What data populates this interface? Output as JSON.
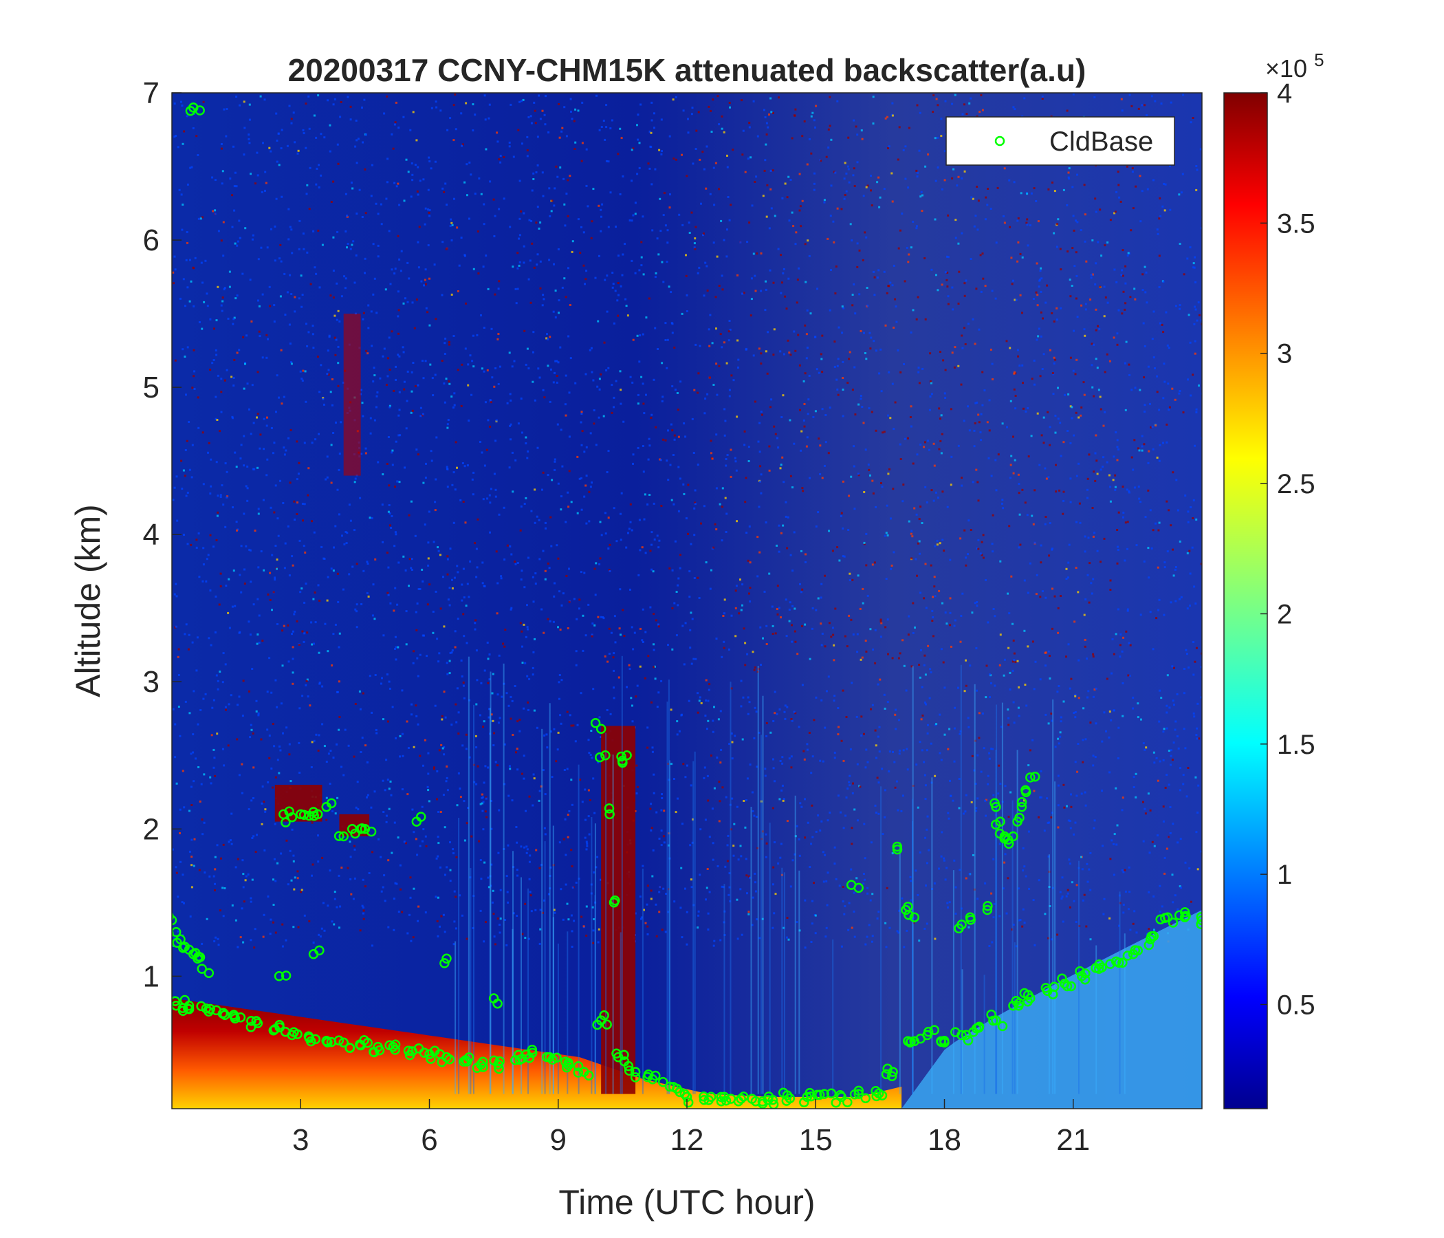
{
  "chart_data": {
    "type": "heatmap",
    "title": "20200317 CCNY-CHM15K attenuated backscatter(a.u)",
    "xlabel": "Time (UTC hour)",
    "ylabel": "Altitude (km)",
    "xlim": [
      0,
      24
    ],
    "ylim": [
      0.1,
      7
    ],
    "x_ticks": [
      3,
      6,
      9,
      12,
      15,
      18,
      21
    ],
    "y_ticks": [
      1,
      2,
      3,
      4,
      5,
      6,
      7
    ],
    "colorbar": {
      "colormap": "jet",
      "range": [
        0.1,
        4
      ],
      "ticks": [
        0.5,
        1,
        1.5,
        2,
        2.5,
        3,
        3.5,
        4
      ],
      "exponent_label": "×10",
      "exponent_power": "5"
    },
    "legend": {
      "position": "top-right",
      "entries": [
        "CldBase"
      ]
    },
    "series": [
      {
        "name": "CldBase",
        "marker": "circle",
        "color": "#00ff00",
        "segments": [
          {
            "x": [
              0.1,
              0.4,
              0.8,
              1.2,
              1.6,
              2.0,
              2.4,
              2.8,
              3.2,
              3.6,
              4.0,
              4.4,
              4.8,
              5.2,
              5.6,
              6.0,
              6.4,
              6.8,
              7.2,
              7.6,
              8.0,
              8.4,
              8.8,
              9.2,
              9.6,
              10.0,
              10.4,
              10.8,
              11.2,
              11.6,
              12.0,
              12.4,
              12.8,
              13.2,
              13.6,
              14.0,
              14.4,
              14.8,
              15.2,
              15.6,
              16.0,
              16.4,
              16.8,
              17.2,
              17.6,
              18.0,
              18.4,
              18.8,
              19.2,
              19.6,
              20.0,
              20.4,
              20.8,
              21.2,
              21.6,
              22.0,
              22.4,
              22.8,
              23.2,
              23.6,
              24.0
            ],
            "y": [
              0.8,
              0.8,
              0.78,
              0.75,
              0.72,
              0.68,
              0.64,
              0.6,
              0.58,
              0.56,
              0.55,
              0.53,
              0.52,
              0.5,
              0.49,
              0.47,
              0.45,
              0.42,
              0.4,
              0.4,
              0.43,
              0.48,
              0.45,
              0.38,
              0.35,
              0.7,
              0.45,
              0.35,
              0.3,
              0.25,
              0.18,
              0.16,
              0.15,
              0.15,
              0.15,
              0.16,
              0.17,
              0.18,
              0.2,
              0.18,
              0.2,
              0.22,
              0.35,
              0.55,
              0.6,
              0.55,
              0.6,
              0.65,
              0.7,
              0.8,
              0.85,
              0.9,
              0.95,
              1.0,
              1.05,
              1.1,
              1.15,
              1.25,
              1.4,
              1.4,
              1.38
            ]
          },
          {
            "x": [
              0.0,
              0.1,
              0.2,
              0.3,
              0.4,
              0.5,
              0.6,
              0.7
            ],
            "y": [
              1.38,
              1.3,
              1.25,
              1.2,
              1.18,
              1.15,
              1.12,
              1.05
            ]
          },
          {
            "x": [
              2.6,
              2.8,
              3.0,
              3.2,
              3.4
            ],
            "y": [
              2.1,
              2.08,
              2.1,
              2.09,
              2.1
            ]
          },
          {
            "x": [
              4.0,
              4.2,
              4.4,
              4.5
            ],
            "y": [
              1.95,
              2.0,
              2.0,
              2.0
            ]
          },
          {
            "x": [
              10.0,
              10.1,
              10.2,
              10.3,
              10.5,
              10.6
            ],
            "y": [
              2.68,
              2.5,
              2.1,
              1.5,
              2.45,
              2.5
            ]
          },
          {
            "x": [
              19.2,
              19.3,
              19.4,
              19.5,
              19.6,
              19.7,
              19.8,
              19.9,
              20.0
            ],
            "y": [
              2.15,
              2.05,
              1.95,
              1.9,
              1.95,
              2.05,
              2.15,
              2.25,
              2.35
            ]
          },
          {
            "x": [
              16.0,
              16.9,
              17.1,
              17.3,
              18.4,
              18.6,
              19.0
            ],
            "y": [
              1.6,
              1.88,
              1.45,
              1.4,
              1.35,
              1.4,
              1.45
            ]
          },
          {
            "x": [
              0.5,
              2.5,
              3.3,
              3.6,
              5.7,
              6.4,
              7.5,
              0.5
            ],
            "y": [
              6.9,
              1.0,
              1.15,
              2.15,
              2.05,
              1.12,
              0.85,
              6.9
            ]
          }
        ]
      }
    ],
    "field_features": [
      {
        "kind": "surface_aerosol_layer",
        "x": [
          0,
          9.5
        ],
        "top": [
          0.85,
          0.45
        ],
        "color": "#aa0000"
      },
      {
        "kind": "cloud",
        "x": [
          2.4,
          3.5
        ],
        "y": [
          2.05,
          2.3
        ]
      },
      {
        "kind": "cloud",
        "x": [
          3.9,
          4.6
        ],
        "y": [
          1.95,
          2.1
        ]
      },
      {
        "kind": "virga",
        "x": [
          4.0,
          4.4
        ],
        "y": [
          4.4,
          5.5
        ]
      },
      {
        "kind": "cloud",
        "x": [
          10.0,
          10.8
        ],
        "y": [
          0.2,
          2.7
        ]
      },
      {
        "kind": "daytime_noise_high",
        "x": [
          12.5,
          22.5
        ],
        "y": [
          3.0,
          7.0
        ]
      },
      {
        "kind": "mixed_layer_clear",
        "x": [
          18.0,
          24.0
        ],
        "top": [
          0.5,
          1.45
        ]
      }
    ]
  }
}
